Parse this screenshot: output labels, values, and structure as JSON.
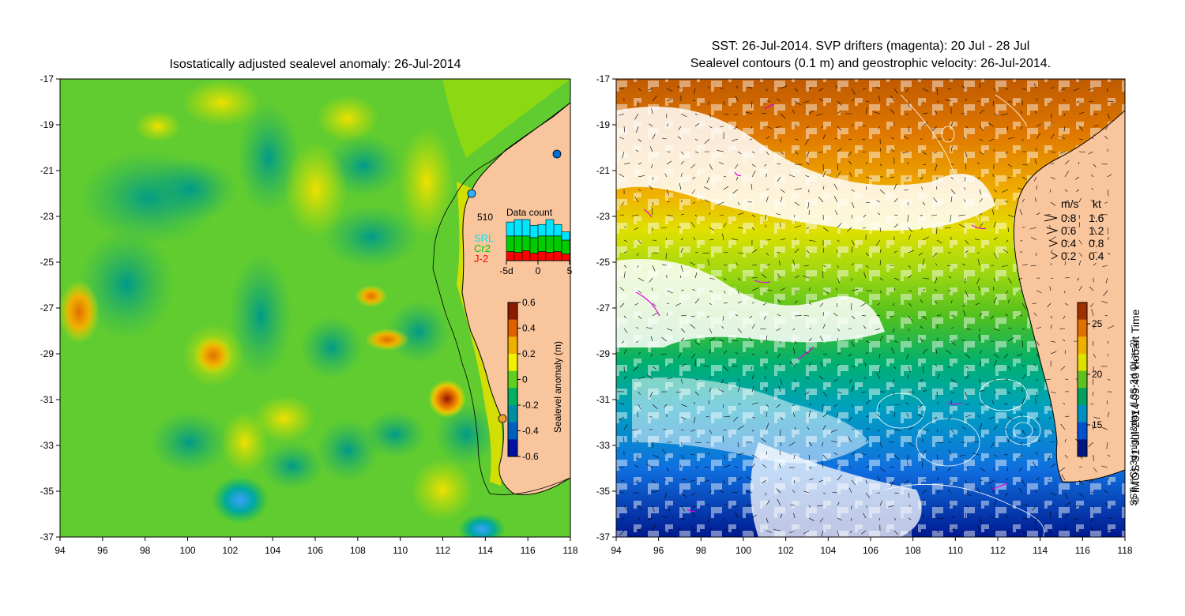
{
  "left_panel": {
    "title": "Isostatically adjusted sealevel anomaly: 26-Jul-2014",
    "x_ticks": [
      "94",
      "96",
      "98",
      "100",
      "102",
      "104",
      "106",
      "108",
      "110",
      "112",
      "114",
      "116",
      "118"
    ],
    "y_ticks": [
      "-17",
      "-19",
      "-21",
      "-23",
      "-25",
      "-27",
      "-29",
      "-31",
      "-33",
      "-35",
      "-37"
    ],
    "data_count": {
      "title": "Data count",
      "max_label": "510",
      "x_ticks": [
        "-5d",
        "0",
        "5"
      ],
      "legend": [
        {
          "label": "SRL",
          "color": "#00e5ff"
        },
        {
          "label": "Cr2",
          "color": "#00cc00"
        },
        {
          "label": "J-2",
          "color": "#ff0000"
        }
      ],
      "bars": [
        {
          "j2": 0.22,
          "cr2": 0.38,
          "srl": 0.34
        },
        {
          "j2": 0.2,
          "cr2": 0.4,
          "srl": 0.4
        },
        {
          "j2": 0.24,
          "cr2": 0.36,
          "srl": 0.4
        },
        {
          "j2": 0.18,
          "cr2": 0.38,
          "srl": 0.3
        },
        {
          "j2": 0.22,
          "cr2": 0.38,
          "srl": 0.28
        },
        {
          "j2": 0.2,
          "cr2": 0.4,
          "srl": 0.4
        },
        {
          "j2": 0.22,
          "cr2": 0.38,
          "srl": 0.28
        },
        {
          "j2": 0.16,
          "cr2": 0.34,
          "srl": 0.2
        }
      ]
    },
    "colorbar": {
      "label": "Sealevel anomaly (m)",
      "ticks": [
        "0.6",
        "0.4",
        "0.2",
        "0",
        "-0.2",
        "-0.4",
        "-0.6"
      ],
      "colors": [
        "#8b1a00",
        "#e06000",
        "#f0b000",
        "#f0f000",
        "#60d020",
        "#00b060",
        "#008fa0",
        "#0060c0",
        "#0010a0"
      ]
    }
  },
  "right_panel": {
    "title_line1": "SST: 26-Jul-2014. SVP drifters (magenta): 20 Jul - 28 Jul",
    "title_line2": "Sealevel contours (0.1 m) and geostrophic velocity: 26-Jul-2014.",
    "x_ticks": [
      "94",
      "96",
      "98",
      "100",
      "102",
      "104",
      "106",
      "108",
      "110",
      "112",
      "114",
      "116",
      "118"
    ],
    "y_ticks": [
      "-17",
      "-19",
      "-21",
      "-23",
      "-25",
      "-27",
      "-29",
      "-31",
      "-33",
      "-35",
      "-37"
    ],
    "velocity_legend": {
      "header_ms": "m/s",
      "header_kt": "kt",
      "rows": [
        {
          "ms": "0.8",
          "kt": "1.6"
        },
        {
          "ms": "0.6",
          "kt": "1.2"
        },
        {
          "ms": "0.4",
          "kt": "0.8"
        },
        {
          "ms": "0.2",
          "kt": "0.4"
        }
      ]
    },
    "colorbar": {
      "label": "SST (°C) 3d night&day (L3S-3d QL>=2)",
      "ticks": [
        "25",
        "20",
        "15"
      ],
      "colors": [
        "#a03000",
        "#e07000",
        "#f0b000",
        "#e0e000",
        "#60c020",
        "#00a060",
        "#0090c0",
        "#0050d0",
        "#001880"
      ]
    },
    "credit": "© IMOS 31-Jul-2014 09:40 Hobart Time"
  },
  "colors": {
    "land": "#f9c59d",
    "coast": "#000000"
  }
}
